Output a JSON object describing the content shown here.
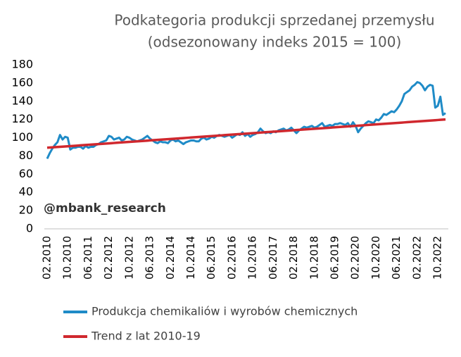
{
  "chart_data": {
    "type": "line",
    "title": "Podkategoria produkcji sprzedanej przemysłu",
    "subtitle": "(odsezonowany indeks 2015 = 100)",
    "annotation": "@mbank_research",
    "categories": [
      "02.2010",
      null,
      null,
      null,
      null,
      null,
      null,
      null,
      "10.2010",
      null,
      null,
      null,
      null,
      null,
      null,
      null,
      "06.2011",
      null,
      null,
      null,
      null,
      null,
      null,
      null,
      "02.2012",
      null,
      null,
      null,
      null,
      null,
      null,
      null,
      "10.2012",
      null,
      null,
      null,
      null,
      null,
      null,
      null,
      "06.2013",
      null,
      null,
      null,
      null,
      null,
      null,
      null,
      "02.2014",
      null,
      null,
      null,
      null,
      null,
      null,
      null,
      "10.2014",
      null,
      null,
      null,
      null,
      null,
      null,
      null,
      "06.2015",
      null,
      null,
      null,
      null,
      null,
      null,
      null,
      "02.2016",
      null,
      null,
      null,
      null,
      null,
      null,
      null,
      "10.2016",
      null,
      null,
      null,
      null,
      null,
      null,
      null,
      "06.2017",
      null,
      null,
      null,
      null,
      null,
      null,
      null,
      "02.2018",
      null,
      null,
      null,
      null,
      null,
      null,
      null,
      "10.2018",
      null,
      null,
      null,
      null,
      null,
      null,
      null,
      "06.2019",
      null,
      null,
      null,
      null,
      null,
      null,
      null,
      "02.2020",
      null,
      null,
      null,
      null,
      null,
      null,
      null,
      "10.2020",
      null,
      null,
      null,
      null,
      null,
      null,
      null,
      "06.2021",
      null,
      null,
      null,
      null,
      null,
      null,
      null,
      "02.2022",
      null,
      null,
      null,
      null,
      null,
      null,
      null,
      "10.2022",
      null,
      null,
      null
    ],
    "series": [
      {
        "name": "Produkcja chemikaliów i wyrobów chemicznych",
        "color": "#1f8bc7",
        "values": [
          77,
          83,
          88,
          92,
          95,
          103,
          98,
          101,
          100,
          87,
          89,
          89,
          90,
          90,
          88,
          91,
          89,
          90,
          90,
          92,
          93,
          95,
          96,
          97,
          102,
          101,
          98,
          99,
          100,
          97,
          98,
          101,
          100,
          98,
          97,
          96,
          97,
          98,
          100,
          102,
          99,
          97,
          95,
          94,
          96,
          95,
          95,
          94,
          97,
          98,
          96,
          97,
          95,
          93,
          95,
          96,
          97,
          97,
          96,
          96,
          99,
          100,
          98,
          99,
          101,
          100,
          102,
          103,
          102,
          101,
          102,
          103,
          100,
          102,
          104,
          103,
          106,
          102,
          104,
          101,
          103,
          104,
          106,
          110,
          107,
          105,
          106,
          105,
          107,
          106,
          108,
          109,
          110,
          108,
          109,
          111,
          108,
          105,
          108,
          110,
          112,
          111,
          112,
          113,
          111,
          112,
          114,
          116,
          112,
          113,
          114,
          113,
          115,
          115,
          116,
          115,
          114,
          116,
          112,
          117,
          113,
          106,
          110,
          113,
          116,
          118,
          117,
          116,
          120,
          119,
          122,
          126,
          125,
          127,
          129,
          128,
          131,
          135,
          140,
          148,
          150,
          152,
          156,
          158,
          161,
          160,
          157,
          152,
          156,
          158,
          157,
          133,
          135,
          145,
          125,
          127
        ]
      },
      {
        "name": "Trend z lat 2010-19",
        "color": "#d0282e",
        "values": [
          89,
          89.2,
          89.4,
          89.6,
          89.8,
          90,
          90.2,
          90.4,
          90.6,
          90.8,
          91,
          91.2,
          91.4,
          91.6,
          91.8,
          92,
          92.2,
          92.4,
          92.6,
          92.8,
          93,
          93.2,
          93.4,
          93.6,
          93.8,
          94,
          94.2,
          94.4,
          94.6,
          94.8,
          95,
          95.2,
          95.4,
          95.6,
          95.8,
          96,
          96.2,
          96.4,
          96.6,
          96.8,
          97,
          97.2,
          97.4,
          97.6,
          97.8,
          98,
          98.2,
          98.4,
          98.6,
          98.8,
          99,
          99.2,
          99.4,
          99.6,
          99.8,
          100,
          100.2,
          100.4,
          100.6,
          100.8,
          101,
          101.2,
          101.4,
          101.6,
          101.8,
          102,
          102.2,
          102.4,
          102.6,
          102.8,
          103,
          103.2,
          103.4,
          103.6,
          103.8,
          104,
          104.2,
          104.4,
          104.6,
          104.8,
          105,
          105.2,
          105.4,
          105.6,
          105.8,
          106,
          106.2,
          106.4,
          106.6,
          106.8,
          107,
          107.2,
          107.4,
          107.6,
          107.8,
          108,
          108.2,
          108.4,
          108.6,
          108.8,
          109,
          109.2,
          109.4,
          109.6,
          109.8,
          110,
          110.2,
          110.4,
          110.6,
          110.8,
          111,
          111.2,
          111.4,
          111.6,
          111.8,
          112,
          112.2,
          112.4,
          112.6,
          112.8,
          113,
          113.2,
          113.4,
          113.6,
          113.8,
          114,
          114.2,
          114.4,
          114.6,
          114.8,
          115,
          115.2,
          115.4,
          115.6,
          115.8,
          116,
          116.2,
          116.4,
          116.6,
          116.8,
          117,
          117.2,
          117.4,
          117.6,
          117.8,
          118,
          118.2,
          118.4,
          118.6,
          118.8,
          119,
          119.2,
          119.4,
          119.6,
          119.8,
          120
        ]
      }
    ],
    "ylim": [
      0,
      180
    ],
    "yticks": [
      0,
      20,
      40,
      60,
      80,
      100,
      120,
      140,
      160,
      180
    ],
    "grid": false
  }
}
